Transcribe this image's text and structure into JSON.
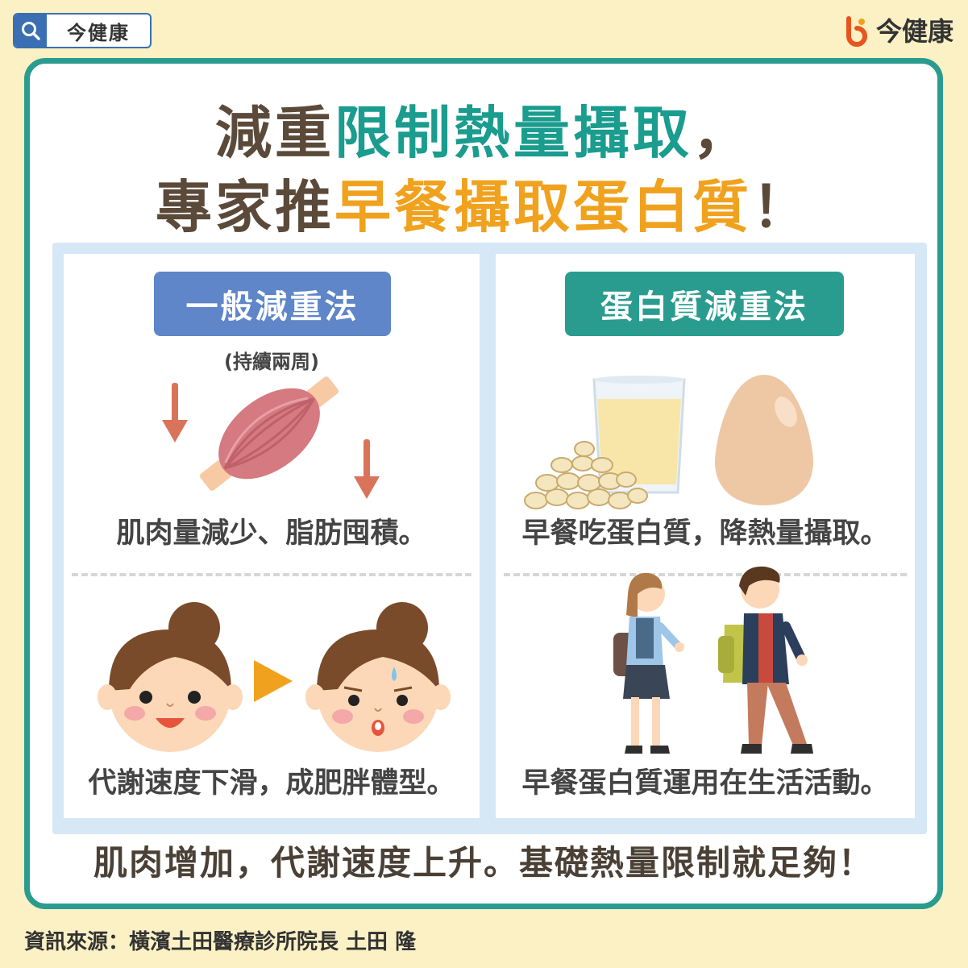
{
  "header": {
    "search_label": "今健康",
    "brand_name": "今健康"
  },
  "title": {
    "line1_prefix": "減重",
    "line1_highlight": "限制熱量攝取",
    "line1_suffix": "，",
    "line2_prefix": "專家推",
    "line2_highlight": "早餐攝取蛋白質",
    "line2_suffix": "！"
  },
  "left_panel": {
    "tag": "一般減重法",
    "note": "(持續兩周)",
    "caption_top": "肌肉量減少、脂肪囤積。",
    "caption_bottom": "代謝速度下滑，成肥胖體型。"
  },
  "right_panel": {
    "tag": "蛋白質減重法",
    "caption_top": "早餐吃蛋白質，降熱量攝取。",
    "caption_bottom": "早餐蛋白質運用在生活活動。"
  },
  "footer": "肌肉增加，代謝速度上升。基礎熱量限制就足夠！",
  "source": "資訊來源：橫濱土田醫療診所院長 土田 隆",
  "colors": {
    "teal": "#2a9c8f",
    "orange": "#f0a21e",
    "blue": "#5e86c8",
    "background": "#fbf1c5"
  },
  "icons": [
    "search-icon",
    "brand-logo-icon",
    "down-arrow-icon",
    "muscle-icon",
    "play-arrow-icon",
    "girl-face-icon",
    "soybean-icon",
    "milk-glass-icon",
    "egg-icon",
    "walking-students-icon"
  ]
}
